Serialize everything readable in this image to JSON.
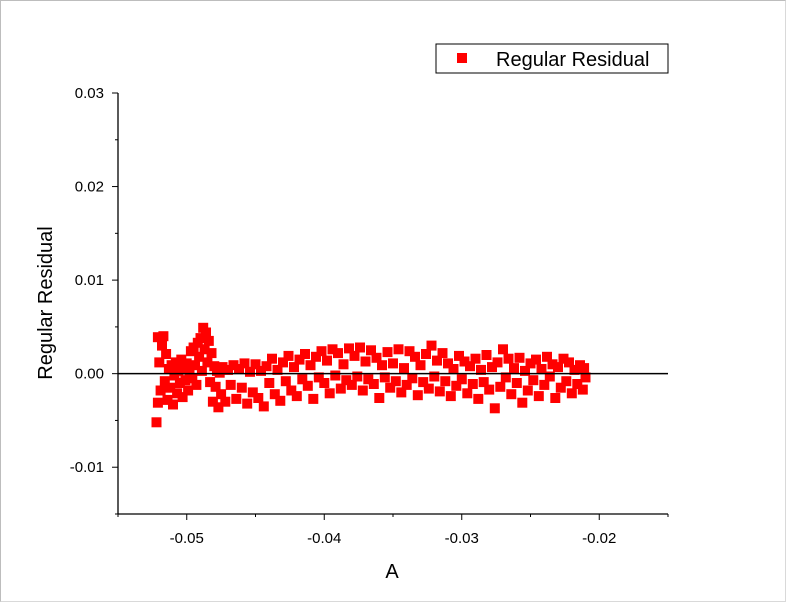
{
  "chart_data": {
    "type": "scatter",
    "title": "",
    "xlabel": "A",
    "ylabel": "Regular Residual",
    "xlim": [
      -0.055,
      -0.015
    ],
    "ylim": [
      -0.015,
      0.03
    ],
    "x_ticks": [
      "-0.05",
      "-0.04",
      "-0.03",
      "-0.02"
    ],
    "x_tick_values": [
      -0.05,
      -0.04,
      -0.03,
      -0.02
    ],
    "y_ticks": [
      "0.03",
      "0.02",
      "0.01",
      "0.00",
      "-0.01"
    ],
    "y_tick_values": [
      0.03,
      0.02,
      0.01,
      0.0,
      -0.01
    ],
    "reference_line_y": 0.0,
    "grid": false,
    "legend_position": "top-right",
    "series": [
      {
        "name": "Regular Residual",
        "color": "#ff0000",
        "marker": "square",
        "points": [
          [
            -0.0522,
            -0.0052
          ],
          [
            -0.0521,
            -0.0031
          ],
          [
            -0.0521,
            0.0039
          ],
          [
            -0.052,
            0.0012
          ],
          [
            -0.0519,
            -0.0018
          ],
          [
            -0.0518,
            0.003
          ],
          [
            -0.0517,
            0.004
          ],
          [
            -0.0516,
            -0.0008
          ],
          [
            -0.0515,
            0.0021
          ],
          [
            -0.0514,
            -0.0028
          ],
          [
            -0.0513,
            0.0005
          ],
          [
            -0.0512,
            -0.0015
          ],
          [
            -0.0511,
            0.0009
          ],
          [
            -0.051,
            -0.0033
          ],
          [
            -0.0509,
            -0.0002
          ],
          [
            -0.0508,
            0.0012
          ],
          [
            -0.0507,
            -0.0021
          ],
          [
            -0.0506,
            0.0003
          ],
          [
            -0.0505,
            -0.001
          ],
          [
            -0.0504,
            0.0015
          ],
          [
            -0.0503,
            -0.0025
          ],
          [
            -0.0502,
            0.0006
          ],
          [
            -0.0501,
            -0.0007
          ],
          [
            -0.05,
            0.0011
          ],
          [
            -0.0499,
            -0.0018
          ],
          [
            -0.0498,
            0.0002
          ],
          [
            -0.0497,
            0.0024
          ],
          [
            -0.0496,
            -0.0005
          ],
          [
            -0.0495,
            0.0028
          ],
          [
            -0.0494,
            0.0009
          ],
          [
            -0.0493,
            -0.0012
          ],
          [
            -0.0492,
            0.0033
          ],
          [
            -0.0491,
            0.0018
          ],
          [
            -0.049,
            0.0038
          ],
          [
            -0.0489,
            0.0003
          ],
          [
            -0.0488,
            0.0049
          ],
          [
            -0.0487,
            0.0026
          ],
          [
            -0.0486,
            0.0044
          ],
          [
            -0.0485,
            0.0012
          ],
          [
            -0.0484,
            0.0035
          ],
          [
            -0.0483,
            -0.0009
          ],
          [
            -0.0482,
            0.0022
          ],
          [
            -0.0481,
            -0.003
          ],
          [
            -0.048,
            0.0008
          ],
          [
            -0.0479,
            -0.0014
          ],
          [
            -0.0478,
            0.0003
          ],
          [
            -0.0477,
            -0.0036
          ],
          [
            -0.0476,
            0.0001
          ],
          [
            -0.0475,
            -0.0022
          ],
          [
            -0.0474,
            0.0007
          ],
          [
            -0.0472,
            -0.003
          ],
          [
            -0.047,
            0.0004
          ],
          [
            -0.0468,
            -0.0012
          ],
          [
            -0.0466,
            0.0009
          ],
          [
            -0.0464,
            -0.0027
          ],
          [
            -0.0462,
            0.0005
          ],
          [
            -0.046,
            -0.0015
          ],
          [
            -0.0458,
            0.0011
          ],
          [
            -0.0456,
            -0.0032
          ],
          [
            -0.0454,
            0.0002
          ],
          [
            -0.0452,
            -0.002
          ],
          [
            -0.045,
            0.001
          ],
          [
            -0.0448,
            -0.0026
          ],
          [
            -0.0446,
            0.0003
          ],
          [
            -0.0444,
            -0.0035
          ],
          [
            -0.0442,
            0.0008
          ],
          [
            -0.044,
            -0.001
          ],
          [
            -0.0438,
            0.0016
          ],
          [
            -0.0436,
            -0.0022
          ],
          [
            -0.0434,
            0.0004
          ],
          [
            -0.0432,
            -0.0029
          ],
          [
            -0.043,
            0.0012
          ],
          [
            -0.0428,
            -0.0008
          ],
          [
            -0.0426,
            0.0019
          ],
          [
            -0.0424,
            -0.0018
          ],
          [
            -0.0422,
            0.0007
          ],
          [
            -0.042,
            -0.0024
          ],
          [
            -0.0418,
            0.0015
          ],
          [
            -0.0416,
            -0.0006
          ],
          [
            -0.0414,
            0.0021
          ],
          [
            -0.0412,
            -0.0013
          ],
          [
            -0.041,
            0.0009
          ],
          [
            -0.0408,
            -0.0027
          ],
          [
            -0.0406,
            0.0018
          ],
          [
            -0.0404,
            -0.0004
          ],
          [
            -0.0402,
            0.0024
          ],
          [
            -0.04,
            -0.001
          ],
          [
            -0.0398,
            0.0014
          ],
          [
            -0.0396,
            -0.0021
          ],
          [
            -0.0394,
            0.0026
          ],
          [
            -0.0392,
            -0.0002
          ],
          [
            -0.039,
            0.0022
          ],
          [
            -0.0388,
            -0.0016
          ],
          [
            -0.0386,
            0.001
          ],
          [
            -0.0384,
            -0.0007
          ],
          [
            -0.0382,
            0.0027
          ],
          [
            -0.038,
            -0.0012
          ],
          [
            -0.0378,
            0.0019
          ],
          [
            -0.0376,
            -0.0003
          ],
          [
            -0.0374,
            0.0028
          ],
          [
            -0.0372,
            -0.0018
          ],
          [
            -0.037,
            0.0013
          ],
          [
            -0.0368,
            -0.0006
          ],
          [
            -0.0366,
            0.0025
          ],
          [
            -0.0364,
            -0.0011
          ],
          [
            -0.0362,
            0.0017
          ],
          [
            -0.036,
            -0.0026
          ],
          [
            -0.0358,
            0.0009
          ],
          [
            -0.0356,
            -0.0004
          ],
          [
            -0.0354,
            0.0023
          ],
          [
            -0.0352,
            -0.0015
          ],
          [
            -0.035,
            0.0011
          ],
          [
            -0.0348,
            -0.0008
          ],
          [
            -0.0346,
            0.0026
          ],
          [
            -0.0344,
            -0.002
          ],
          [
            -0.0342,
            0.0006
          ],
          [
            -0.034,
            -0.0012
          ],
          [
            -0.0338,
            0.0024
          ],
          [
            -0.0336,
            -0.0005
          ],
          [
            -0.0334,
            0.0018
          ],
          [
            -0.0332,
            -0.0023
          ],
          [
            -0.033,
            0.0009
          ],
          [
            -0.0328,
            -0.0009
          ],
          [
            -0.0326,
            0.0021
          ],
          [
            -0.0324,
            -0.0016
          ],
          [
            -0.0322,
            0.003
          ],
          [
            -0.032,
            -0.0003
          ],
          [
            -0.0318,
            0.0014
          ],
          [
            -0.0316,
            -0.0019
          ],
          [
            -0.0314,
            0.0022
          ],
          [
            -0.0312,
            -0.0008
          ],
          [
            -0.031,
            0.0011
          ],
          [
            -0.0308,
            -0.0024
          ],
          [
            -0.0306,
            0.0005
          ],
          [
            -0.0304,
            -0.0013
          ],
          [
            -0.0302,
            0.0019
          ],
          [
            -0.03,
            -0.0006
          ],
          [
            -0.0298,
            0.0013
          ],
          [
            -0.0296,
            -0.0021
          ],
          [
            -0.0294,
            0.0008
          ],
          [
            -0.0292,
            -0.0011
          ],
          [
            -0.029,
            0.0016
          ],
          [
            -0.0288,
            -0.0027
          ],
          [
            -0.0286,
            0.0004
          ],
          [
            -0.0284,
            -0.0009
          ],
          [
            -0.0282,
            0.002
          ],
          [
            -0.028,
            -0.0017
          ],
          [
            -0.0278,
            0.0007
          ],
          [
            -0.0276,
            -0.0037
          ],
          [
            -0.0274,
            0.0012
          ],
          [
            -0.0272,
            -0.0014
          ],
          [
            -0.027,
            0.0026
          ],
          [
            -0.0268,
            -0.0004
          ],
          [
            -0.0266,
            0.0016
          ],
          [
            -0.0264,
            -0.0022
          ],
          [
            -0.0262,
            0.0006
          ],
          [
            -0.026,
            -0.001
          ],
          [
            -0.0258,
            0.0017
          ],
          [
            -0.0256,
            -0.0031
          ],
          [
            -0.0254,
            0.0003
          ],
          [
            -0.0252,
            -0.0018
          ],
          [
            -0.025,
            0.0011
          ],
          [
            -0.0248,
            -0.0007
          ],
          [
            -0.0246,
            0.0015
          ],
          [
            -0.0244,
            -0.0024
          ],
          [
            -0.0242,
            0.0005
          ],
          [
            -0.024,
            -0.0012
          ],
          [
            -0.0238,
            0.0018
          ],
          [
            -0.0236,
            -0.0003
          ],
          [
            -0.0234,
            0.001
          ],
          [
            -0.0232,
            -0.0026
          ],
          [
            -0.023,
            0.0007
          ],
          [
            -0.0228,
            -0.0015
          ],
          [
            -0.0226,
            0.0016
          ],
          [
            -0.0224,
            -0.0008
          ],
          [
            -0.0222,
            0.0012
          ],
          [
            -0.022,
            -0.0021
          ],
          [
            -0.0218,
            0.0004
          ],
          [
            -0.0216,
            -0.0011
          ],
          [
            -0.0214,
            0.0009
          ],
          [
            -0.0212,
            -0.0017
          ],
          [
            -0.0211,
            0.0006
          ],
          [
            -0.021,
            -0.0004
          ]
        ]
      }
    ]
  }
}
